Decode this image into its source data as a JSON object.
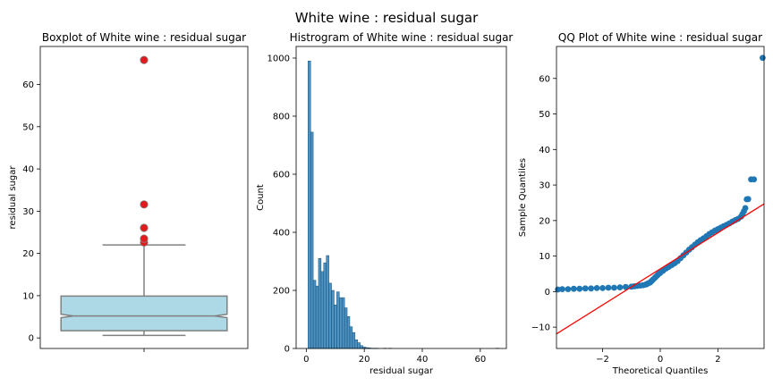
{
  "figure": {
    "suptitle": "White wine : residual sugar"
  },
  "colors": {
    "box_fill": "#add8e6",
    "box_edge": "#808080",
    "outlier": "#e31a1c",
    "bar": "#1f77b4",
    "qq_points": "#1f77b4",
    "qq_line": "#ff0000"
  },
  "chart_data": [
    {
      "type": "box",
      "title": "Boxplot of White wine : residual sugar",
      "xlabel": "",
      "ylabel": "residual sugar",
      "ylim": [
        -2.5,
        69
      ],
      "yticks": [
        0,
        10,
        20,
        30,
        40,
        50,
        60
      ],
      "notch": true,
      "box": {
        "whisker_low": 0.6,
        "q1": 1.7,
        "median": 5.2,
        "q3": 9.9,
        "whisker_high": 22.0
      },
      "outliers": [
        22.6,
        23.5,
        26.05,
        31.6,
        65.8
      ]
    },
    {
      "type": "bar",
      "subtype": "histogram",
      "title": "Histrogram of White wine : residual sugar",
      "xlabel": "residual sugar",
      "ylabel": "Count",
      "xlim": [
        -3.5,
        69
      ],
      "ylim": [
        0,
        1040
      ],
      "xticks": [
        0,
        20,
        40,
        60
      ],
      "yticks": [
        0,
        200,
        400,
        600,
        800,
        1000
      ],
      "bin_start": 0.6,
      "bin_width": 0.9,
      "counts": [
        990,
        745,
        235,
        215,
        310,
        265,
        295,
        320,
        225,
        200,
        150,
        195,
        175,
        175,
        140,
        110,
        75,
        55,
        30,
        20,
        10,
        5,
        3,
        2,
        1,
        1,
        1,
        0,
        0,
        1,
        0,
        1,
        0,
        0,
        0,
        0,
        0,
        0,
        0,
        0,
        0,
        0,
        0,
        0,
        0,
        0,
        0,
        0,
        0,
        0,
        0,
        0,
        0,
        0,
        0,
        0,
        0,
        0,
        0,
        0,
        0,
        0,
        0,
        0,
        0,
        0,
        0,
        0,
        0,
        0,
        0,
        0,
        1
      ]
    },
    {
      "type": "scatter",
      "title": "QQ Plot of White wine : residual sugar",
      "xlabel": "Theoretical Quantiles",
      "ylabel": "Sample Quantiles",
      "xlim": [
        -3.6,
        3.6
      ],
      "ylim": [
        -16,
        69
      ],
      "xticks": [
        -2,
        0,
        2
      ],
      "yticks": [
        -10,
        0,
        10,
        20,
        30,
        40,
        50,
        60
      ],
      "reference_line": {
        "x": [
          -3.6,
          3.6
        ],
        "y": [
          -11.9,
          24.7
        ]
      },
      "points": [
        [
          -3.55,
          0.6
        ],
        [
          -3.4,
          0.7
        ],
        [
          -3.2,
          0.7
        ],
        [
          -3.0,
          0.8
        ],
        [
          -2.8,
          0.8
        ],
        [
          -2.6,
          0.9
        ],
        [
          -2.4,
          0.9
        ],
        [
          -2.2,
          1.0
        ],
        [
          -2.0,
          1.0
        ],
        [
          -1.8,
          1.1
        ],
        [
          -1.6,
          1.1
        ],
        [
          -1.4,
          1.2
        ],
        [
          -1.2,
          1.3
        ],
        [
          -1.0,
          1.4
        ],
        [
          -0.9,
          1.5
        ],
        [
          -0.8,
          1.6
        ],
        [
          -0.7,
          1.7
        ],
        [
          -0.6,
          1.8
        ],
        [
          -0.5,
          2.0
        ],
        [
          -0.45,
          2.2
        ],
        [
          -0.4,
          2.4
        ],
        [
          -0.35,
          2.6
        ],
        [
          -0.3,
          3.0
        ],
        [
          -0.25,
          3.4
        ],
        [
          -0.2,
          3.8
        ],
        [
          -0.15,
          4.2
        ],
        [
          -0.1,
          4.6
        ],
        [
          -0.05,
          5.0
        ],
        [
          0.0,
          5.3
        ],
        [
          0.1,
          5.9
        ],
        [
          0.2,
          6.5
        ],
        [
          0.3,
          7.0
        ],
        [
          0.4,
          7.5
        ],
        [
          0.5,
          8.0
        ],
        [
          0.6,
          8.6
        ],
        [
          0.7,
          9.4
        ],
        [
          0.8,
          10.2
        ],
        [
          0.9,
          11.0
        ],
        [
          1.0,
          11.8
        ],
        [
          1.1,
          12.5
        ],
        [
          1.2,
          13.2
        ],
        [
          1.3,
          13.9
        ],
        [
          1.4,
          14.5
        ],
        [
          1.5,
          15.0
        ],
        [
          1.6,
          15.6
        ],
        [
          1.7,
          16.2
        ],
        [
          1.8,
          16.7
        ],
        [
          1.9,
          17.2
        ],
        [
          2.0,
          17.6
        ],
        [
          2.1,
          18.0
        ],
        [
          2.2,
          18.4
        ],
        [
          2.3,
          18.8
        ],
        [
          2.4,
          19.2
        ],
        [
          2.5,
          19.7
        ],
        [
          2.6,
          20.1
        ],
        [
          2.7,
          20.5
        ],
        [
          2.8,
          21.1
        ],
        [
          2.85,
          21.8
        ],
        [
          2.9,
          22.6
        ],
        [
          2.95,
          23.5
        ],
        [
          3.0,
          26.0
        ],
        [
          3.05,
          26.05
        ],
        [
          3.15,
          31.6
        ],
        [
          3.25,
          31.6
        ],
        [
          3.55,
          65.8
        ]
      ]
    }
  ]
}
